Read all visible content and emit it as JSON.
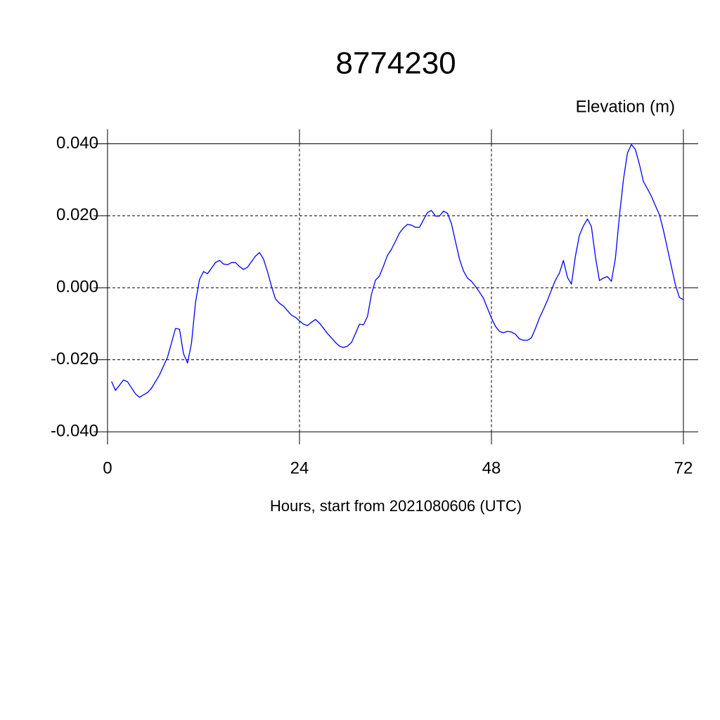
{
  "chart_data": {
    "type": "line",
    "title": "8774230",
    "y_label": "Elevation (m)",
    "x_label": "Hours, start from 2021080606 (UTC)",
    "xlim": [
      -1.75,
      73.85
    ],
    "ylim": [
      -0.0435,
      0.044
    ],
    "xticks": [
      0,
      24,
      48,
      72
    ],
    "yticks": [
      {
        "value": -0.04,
        "label": "-0.040"
      },
      {
        "value": -0.02,
        "label": "-0.020"
      },
      {
        "value": 0,
        "label": "0.000"
      },
      {
        "value": 0.02,
        "label": "0.020"
      },
      {
        "value": 0.04,
        "label": "0.040"
      }
    ],
    "grid": true,
    "series": [
      {
        "color": "#0000ff",
        "x": [
          0.5,
          1,
          2,
          2.5,
          3.5,
          4,
          5,
          5.5,
          6.5,
          7.5,
          8.5,
          9,
          9.5,
          10,
          10.5,
          11,
          11.5,
          12,
          12.5,
          13.5,
          14,
          14.5,
          15,
          15.5,
          16,
          16.5,
          17,
          17.5,
          18.5,
          19,
          19.5,
          20,
          20.5,
          21,
          21.5,
          22,
          23,
          23.5,
          24,
          24.5,
          25,
          25.5,
          26,
          26.5,
          27.5,
          28.5,
          29,
          29.5,
          30,
          30.5,
          31,
          31.5,
          32,
          32.5,
          33,
          33.5,
          34,
          34.5,
          35,
          35.5,
          36,
          36.5,
          37,
          37.5,
          38,
          38.5,
          39,
          40,
          40.5,
          41,
          41.5,
          42,
          42.5,
          43,
          43.5,
          44,
          44.5,
          45,
          45.5,
          46,
          46.5,
          47,
          47.5,
          48,
          48.5,
          49,
          49.5,
          50,
          50.5,
          51,
          51.5,
          52,
          52.5,
          53,
          53.5,
          54,
          54.5,
          55,
          55.5,
          56,
          56.5,
          57,
          57.5,
          58,
          58.5,
          59,
          59.5,
          60,
          60.5,
          61,
          61.5,
          62,
          62.5,
          63,
          63.5,
          64,
          64.5,
          65,
          65.5,
          66,
          66.5,
          67,
          67.5,
          68,
          68.5,
          69,
          69.5,
          70,
          70.5,
          71,
          71.5,
          72
        ],
        "values": [
          -0.026,
          -0.0285,
          -0.0256,
          -0.0261,
          -0.0295,
          -0.0304,
          -0.0291,
          -0.0279,
          -0.0242,
          -0.0193,
          -0.0113,
          -0.0115,
          -0.0183,
          -0.0209,
          -0.0154,
          -0.0041,
          0.0023,
          0.0045,
          0.0039,
          0.007,
          0.0076,
          0.0066,
          0.0064,
          0.007,
          0.007,
          0.0059,
          0.0051,
          0.0057,
          0.0088,
          0.0098,
          0.008,
          0.0045,
          0.0004,
          -0.0031,
          -0.0043,
          -0.0051,
          -0.0076,
          -0.0082,
          -0.0092,
          -0.0101,
          -0.0105,
          -0.0096,
          -0.0088,
          -0.0098,
          -0.0127,
          -0.0152,
          -0.0162,
          -0.0166,
          -0.0162,
          -0.0152,
          -0.0127,
          -0.0101,
          -0.0103,
          -0.008,
          -0.0018,
          0.0021,
          0.0033,
          0.006,
          0.009,
          0.0107,
          0.0129,
          0.0152,
          0.0166,
          0.0176,
          0.0174,
          0.0168,
          0.0168,
          0.0209,
          0.0215,
          0.0199,
          0.0199,
          0.0213,
          0.0207,
          0.0178,
          0.0129,
          0.008,
          0.0047,
          0.0027,
          0.0018,
          0.0004,
          -0.0012,
          -0.0029,
          -0.0057,
          -0.0084,
          -0.0107,
          -0.0121,
          -0.0125,
          -0.0121,
          -0.0123,
          -0.0129,
          -0.0142,
          -0.0146,
          -0.0146,
          -0.0139,
          -0.0113,
          -0.0084,
          -0.006,
          -0.0035,
          -0.0006,
          0.0021,
          0.0041,
          0.0076,
          0.0029,
          0.001,
          0.0088,
          0.0146,
          0.0172,
          0.0191,
          0.017,
          0.0086,
          0.002,
          0.0027,
          0.0031,
          0.0018,
          0.0082,
          0.0199,
          0.03,
          0.0374,
          0.0398,
          0.0384,
          0.0343,
          0.0295,
          0.0275,
          0.0254,
          0.0228,
          0.0203,
          0.016,
          0.0109,
          0.0059,
          0.0008,
          -0.0027,
          -0.0033
        ]
      }
    ]
  }
}
